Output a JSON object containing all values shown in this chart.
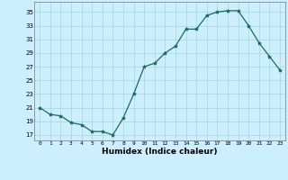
{
  "x": [
    0,
    1,
    2,
    3,
    4,
    5,
    6,
    7,
    8,
    9,
    10,
    11,
    12,
    13,
    14,
    15,
    16,
    17,
    18,
    19,
    20,
    21,
    22,
    23
  ],
  "y": [
    21.0,
    20.0,
    19.8,
    18.8,
    18.5,
    17.5,
    17.5,
    17.0,
    19.5,
    23.0,
    27.0,
    27.5,
    29.0,
    30.0,
    32.5,
    32.5,
    34.5,
    35.0,
    35.2,
    35.2,
    33.0,
    30.5,
    28.5,
    26.5
  ],
  "line_color": "#1a6b5a",
  "marker": "*",
  "marker_size": 3,
  "bg_color": "#cceeff",
  "grid_color": "#aadddd",
  "xlabel": "Humidex (Indice chaleur)",
  "yticks": [
    17,
    19,
    21,
    23,
    25,
    27,
    29,
    31,
    33,
    35
  ],
  "xticks": [
    0,
    1,
    2,
    3,
    4,
    5,
    6,
    7,
    8,
    9,
    10,
    11,
    12,
    13,
    14,
    15,
    16,
    17,
    18,
    19,
    20,
    21,
    22,
    23
  ],
  "ylim": [
    16.2,
    36.5
  ],
  "xlim": [
    -0.5,
    23.5
  ]
}
